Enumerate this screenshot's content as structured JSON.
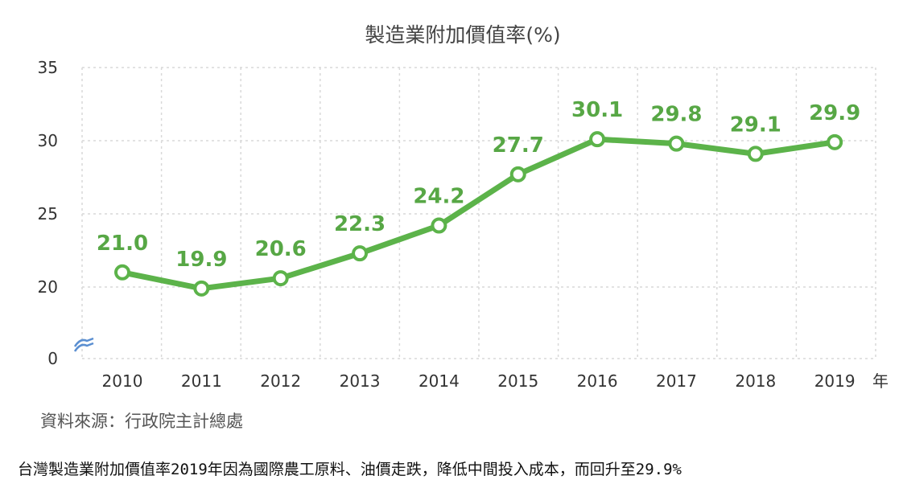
{
  "chart_data": {
    "type": "line",
    "title": "製造業附加價值率(%)",
    "categories": [
      "2010",
      "2011",
      "2012",
      "2013",
      "2014",
      "2015",
      "2016",
      "2017",
      "2018",
      "2019"
    ],
    "series": [
      {
        "values": [
          21.0,
          19.9,
          20.6,
          22.3,
          24.2,
          27.7,
          30.1,
          29.8,
          29.1,
          29.9
        ]
      }
    ],
    "data_labels": [
      "21.0",
      "19.9",
      "20.6",
      "22.3",
      "24.2",
      "27.7",
      "30.1",
      "29.8",
      "29.1",
      "29.9"
    ],
    "y_ticks": [
      0,
      20,
      25,
      30,
      35
    ],
    "ylim": [
      0,
      35
    ],
    "y_axis_break": true,
    "x_unit_label": "年",
    "grid": true,
    "colors": {
      "line": "#5cb34a",
      "label": "#57a745",
      "grid": "#d9d9d9",
      "marker_fill": "#ffffff"
    }
  },
  "source": "資料來源：行政院主計總處",
  "caption": "台灣製造業附加價值率2019年因為國際農工原料、油價走跌，降低中間投入成本，而回升至29.9%"
}
